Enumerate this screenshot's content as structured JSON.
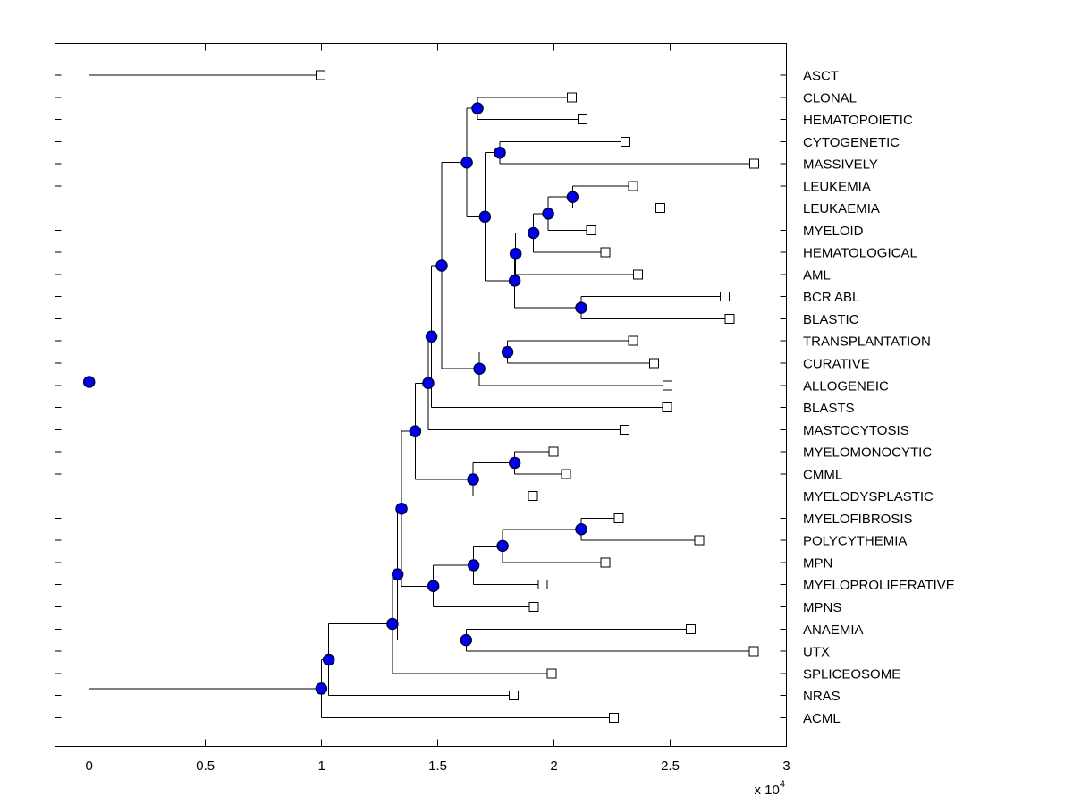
{
  "axis": {
    "xlim": [
      -1462,
      30000
    ],
    "x_ticks": [
      {
        "label": "0",
        "value": 0
      },
      {
        "label": "0.5",
        "value": 5000
      },
      {
        "label": "1",
        "value": 10000
      },
      {
        "label": "1.5",
        "value": 15000
      },
      {
        "label": "2",
        "value": 20000
      },
      {
        "label": "2.5",
        "value": 25000
      },
      {
        "label": "3",
        "value": 30000
      }
    ],
    "multiplier_base": "x 10",
    "multiplier_exponent": "4",
    "box": "on",
    "tick_direction": "in"
  },
  "colors": {
    "line": "#000000",
    "node_fill": "#0000f0",
    "node_edge": "#000040",
    "leaf_marker_fill": "#ffffff",
    "leaf_marker_edge": "#000000",
    "background": "#ffffff"
  },
  "chart_data": {
    "type": "dendrogram",
    "orientation": "left-to-right",
    "title": "",
    "xlabel": "",
    "ylabel": "",
    "x_unit_multiplier": 10000,
    "leaves": [
      {
        "label": "ASCT",
        "x": 9960
      },
      {
        "label": "CLONAL",
        "x": 20770
      },
      {
        "label": "HEMATOPOIETIC",
        "x": 21220
      },
      {
        "label": "CYTOGENETIC",
        "x": 23070
      },
      {
        "label": "MASSIVELY",
        "x": 28610
      },
      {
        "label": "LEUKEMIA",
        "x": 23410
      },
      {
        "label": "LEUKAEMIA",
        "x": 24580
      },
      {
        "label": "MYELOID",
        "x": 21590
      },
      {
        "label": "HEMATOLOGICAL",
        "x": 22210
      },
      {
        "label": "AML",
        "x": 23620
      },
      {
        "label": "BCR ABL",
        "x": 27350
      },
      {
        "label": "BLASTIC",
        "x": 27550
      },
      {
        "label": "TRANSPLANTATION",
        "x": 23410
      },
      {
        "label": "CURATIVE",
        "x": 24310
      },
      {
        "label": "ALLOGENEIC",
        "x": 24890
      },
      {
        "label": "BLASTS",
        "x": 24860
      },
      {
        "label": "MASTOCYTOSIS",
        "x": 23030
      },
      {
        "label": "MYELOMONOCYTIC",
        "x": 19980
      },
      {
        "label": "CMML",
        "x": 20520
      },
      {
        "label": "MYELODYSPLASTIC",
        "x": 19090
      },
      {
        "label": "MYELOFIBROSIS",
        "x": 22790
      },
      {
        "label": "POLYCYTHEMIA",
        "x": 26250
      },
      {
        "label": "MPN",
        "x": 22210
      },
      {
        "label": "MYELOPROLIFERATIVE",
        "x": 19510
      },
      {
        "label": "MPNS",
        "x": 19140
      },
      {
        "label": "ANAEMIA",
        "x": 25880
      },
      {
        "label": "UTX",
        "x": 28590
      },
      {
        "label": "SPLICEOSOME",
        "x": 19900
      },
      {
        "label": "NRAS",
        "x": 18260
      },
      {
        "label": "ACML",
        "x": 22580
      }
    ],
    "root": {
      "x": 0,
      "c": [
        {
          "leaf": 0
        },
        {
          "x": 9990,
          "c": [
            {
              "x": 10310,
              "c": [
                {
                  "x": 13050,
                  "c": [
                    {
                      "x": 13270,
                      "c": [
                        {
                          "x": 13440,
                          "c": [
                            {
                              "x": 14030,
                              "c": [
                                {
                                  "x": 14590,
                                  "c": [
                                    {
                                      "x": 14730,
                                      "c": [
                                        {
                                          "x": 15170,
                                          "c": [
                                            {
                                              "x": 16250,
                                              "c": [
                                                {
                                                  "x": 16710,
                                                  "c": [
                                                    {
                                                      "leaf": 1
                                                    },
                                                    {
                                                      "leaf": 2
                                                    }
                                                  ]
                                                },
                                                {
                                                  "x": 17030,
                                                  "c": [
                                                    {
                                                      "x": 17670,
                                                      "c": [
                                                        {
                                                          "leaf": 3
                                                        },
                                                        {
                                                          "leaf": 4
                                                        }
                                                      ]
                                                    },
                                                    {
                                                      "x": 18310,
                                                      "c": [
                                                        {
                                                          "x": 18350,
                                                          "c": [
                                                            {
                                                              "x": 19120,
                                                              "c": [
                                                                {
                                                                  "x": 19750,
                                                                  "c": [
                                                                    {
                                                                      "x": 20800,
                                                                      "c": [
                                                                        {
                                                                          "leaf": 5
                                                                        },
                                                                        {
                                                                          "leaf": 6
                                                                        }
                                                                      ]
                                                                    },
                                                                    {
                                                                      "leaf": 7
                                                                    }
                                                                  ]
                                                                },
                                                                {
                                                                  "leaf": 8
                                                                }
                                                              ]
                                                            },
                                                            {
                                                              "leaf": 9
                                                            }
                                                          ]
                                                        },
                                                        {
                                                          "x": 21170,
                                                          "c": [
                                                            {
                                                              "leaf": 10
                                                            },
                                                            {
                                                              "leaf": 11
                                                            }
                                                          ]
                                                        }
                                                      ]
                                                    }
                                                  ]
                                                }
                                              ]
                                            },
                                            {
                                              "x": 16790,
                                              "c": [
                                                {
                                                  "x": 18000,
                                                  "c": [
                                                    {
                                                      "leaf": 12
                                                    },
                                                    {
                                                      "leaf": 13
                                                    }
                                                  ]
                                                },
                                                {
                                                  "leaf": 14
                                                }
                                              ]
                                            }
                                          ]
                                        },
                                        {
                                          "leaf": 15
                                        }
                                      ]
                                    },
                                    {
                                      "leaf": 16
                                    }
                                  ]
                                },
                                {
                                  "x": 16520,
                                  "c": [
                                    {
                                      "x": 18310,
                                      "c": [
                                        {
                                          "leaf": 17
                                        },
                                        {
                                          "leaf": 18
                                        }
                                      ]
                                    },
                                    {
                                      "leaf": 19
                                    }
                                  ]
                                }
                              ]
                            },
                            {
                              "x": 14810,
                              "c": [
                                {
                                  "x": 16540,
                                  "c": [
                                    {
                                      "x": 17790,
                                      "c": [
                                        {
                                          "x": 21170,
                                          "c": [
                                            {
                                              "leaf": 20
                                            },
                                            {
                                              "leaf": 21
                                            }
                                          ]
                                        },
                                        {
                                          "leaf": 22
                                        }
                                      ]
                                    },
                                    {
                                      "leaf": 23
                                    }
                                  ]
                                },
                                {
                                  "leaf": 24
                                }
                              ]
                            }
                          ]
                        },
                        {
                          "x": 16220,
                          "c": [
                            {
                              "leaf": 25
                            },
                            {
                              "leaf": 26
                            }
                          ]
                        }
                      ]
                    },
                    {
                      "leaf": 27
                    }
                  ]
                },
                {
                  "leaf": 28
                }
              ]
            },
            {
              "leaf": 29
            }
          ]
        }
      ]
    }
  }
}
